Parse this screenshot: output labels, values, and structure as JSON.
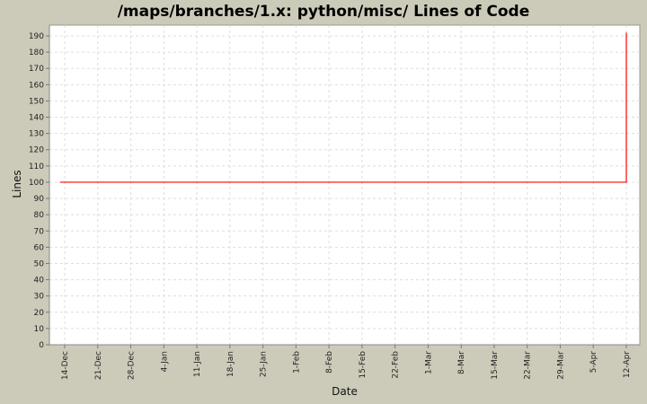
{
  "chart_data": {
    "type": "line",
    "title": "/maps/branches/1.x: python/misc/ Lines of Code",
    "xlabel": "Date",
    "ylabel": "Lines",
    "x_tick_labels": [
      "14-Dec",
      "21-Dec",
      "28-Dec",
      "4-Jan",
      "11-Jan",
      "18-Jan",
      "25-Jan",
      "1-Feb",
      "8-Feb",
      "15-Feb",
      "22-Feb",
      "1-Mar",
      "8-Mar",
      "15-Mar",
      "22-Mar",
      "29-Mar",
      "5-Apr",
      "12-Apr"
    ],
    "y_ticks": [
      0,
      10,
      20,
      30,
      40,
      50,
      60,
      70,
      80,
      90,
      100,
      110,
      120,
      130,
      140,
      150,
      160,
      170,
      180,
      190
    ],
    "ylim": [
      0,
      195
    ],
    "xlim": [
      "12-Dec",
      "14-Apr"
    ],
    "grid": true,
    "series": [
      {
        "color": "#ff0000",
        "points": [
          [
            "13-Dec",
            100
          ],
          [
            "12-Apr",
            100
          ],
          [
            "12-Apr",
            192
          ]
        ]
      }
    ]
  }
}
